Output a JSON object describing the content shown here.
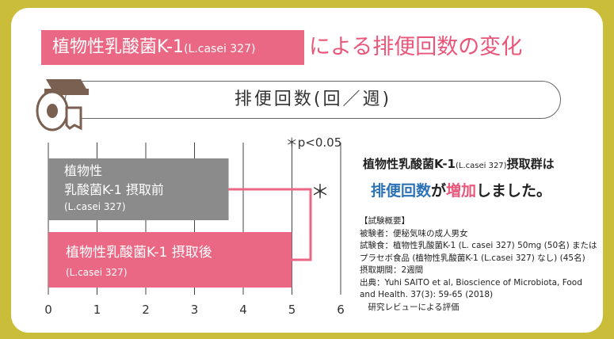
{
  "header": {
    "title_main": "植物性乳酸菌K-1",
    "title_strain": "(L.casei 327)",
    "title_rest": "による排便回数の変化"
  },
  "unit_label": "排便回数(回／週)",
  "significance_label": "＊p<0.05",
  "significance_mark": "＊",
  "chart_data": {
    "type": "bar",
    "orientation": "horizontal",
    "categories": [
      {
        "line1": "植物性",
        "line2": "乳酸菌K-1 摂取前",
        "line3": "(L.casei 327)"
      },
      {
        "line1": "植物性乳酸菌K-1 摂取後",
        "line2": "(L.casei 327)"
      }
    ],
    "values": [
      3.7,
      5.0
    ],
    "bar_colors": [
      "#8b8b8b",
      "#ea6884"
    ],
    "xlim": [
      0,
      6
    ],
    "ticks": [
      "0",
      "1",
      "2",
      "3",
      "4",
      "5",
      "6"
    ],
    "grid": true,
    "xlabel": "排便回数(回／週)"
  },
  "notes": {
    "heading_main": "植物性乳酸菌K-1",
    "heading_strain": "(L.casei 327)",
    "heading_suffix": "摂取群は",
    "result_a": "排便回数",
    "result_b": "が",
    "result_c": "増加",
    "result_d": "しました。",
    "details": [
      "【試験概要】",
      "被験者：便秘気味の成人男女",
      "試験食：植物性乳酸菌K-1 (L. casei 327) 50mg (50名) または",
      "プラセボ食品 (植物性乳酸菌K-1 (L.casei 327) なし) (45名)",
      "摂取期間：2週間",
      "出典：Yuhi SAITO et al, Bioscience of Microbiota, Food",
      "and Health. 37(3): 59-65 (2018)",
      "　研究レビューによる評価"
    ]
  },
  "colors": {
    "accent": "#ea6884",
    "gray_bar": "#8b8b8b",
    "frame": "#c9bd3a",
    "blue": "#2b73b5"
  },
  "icons": [
    "toilet-paper-icon"
  ]
}
